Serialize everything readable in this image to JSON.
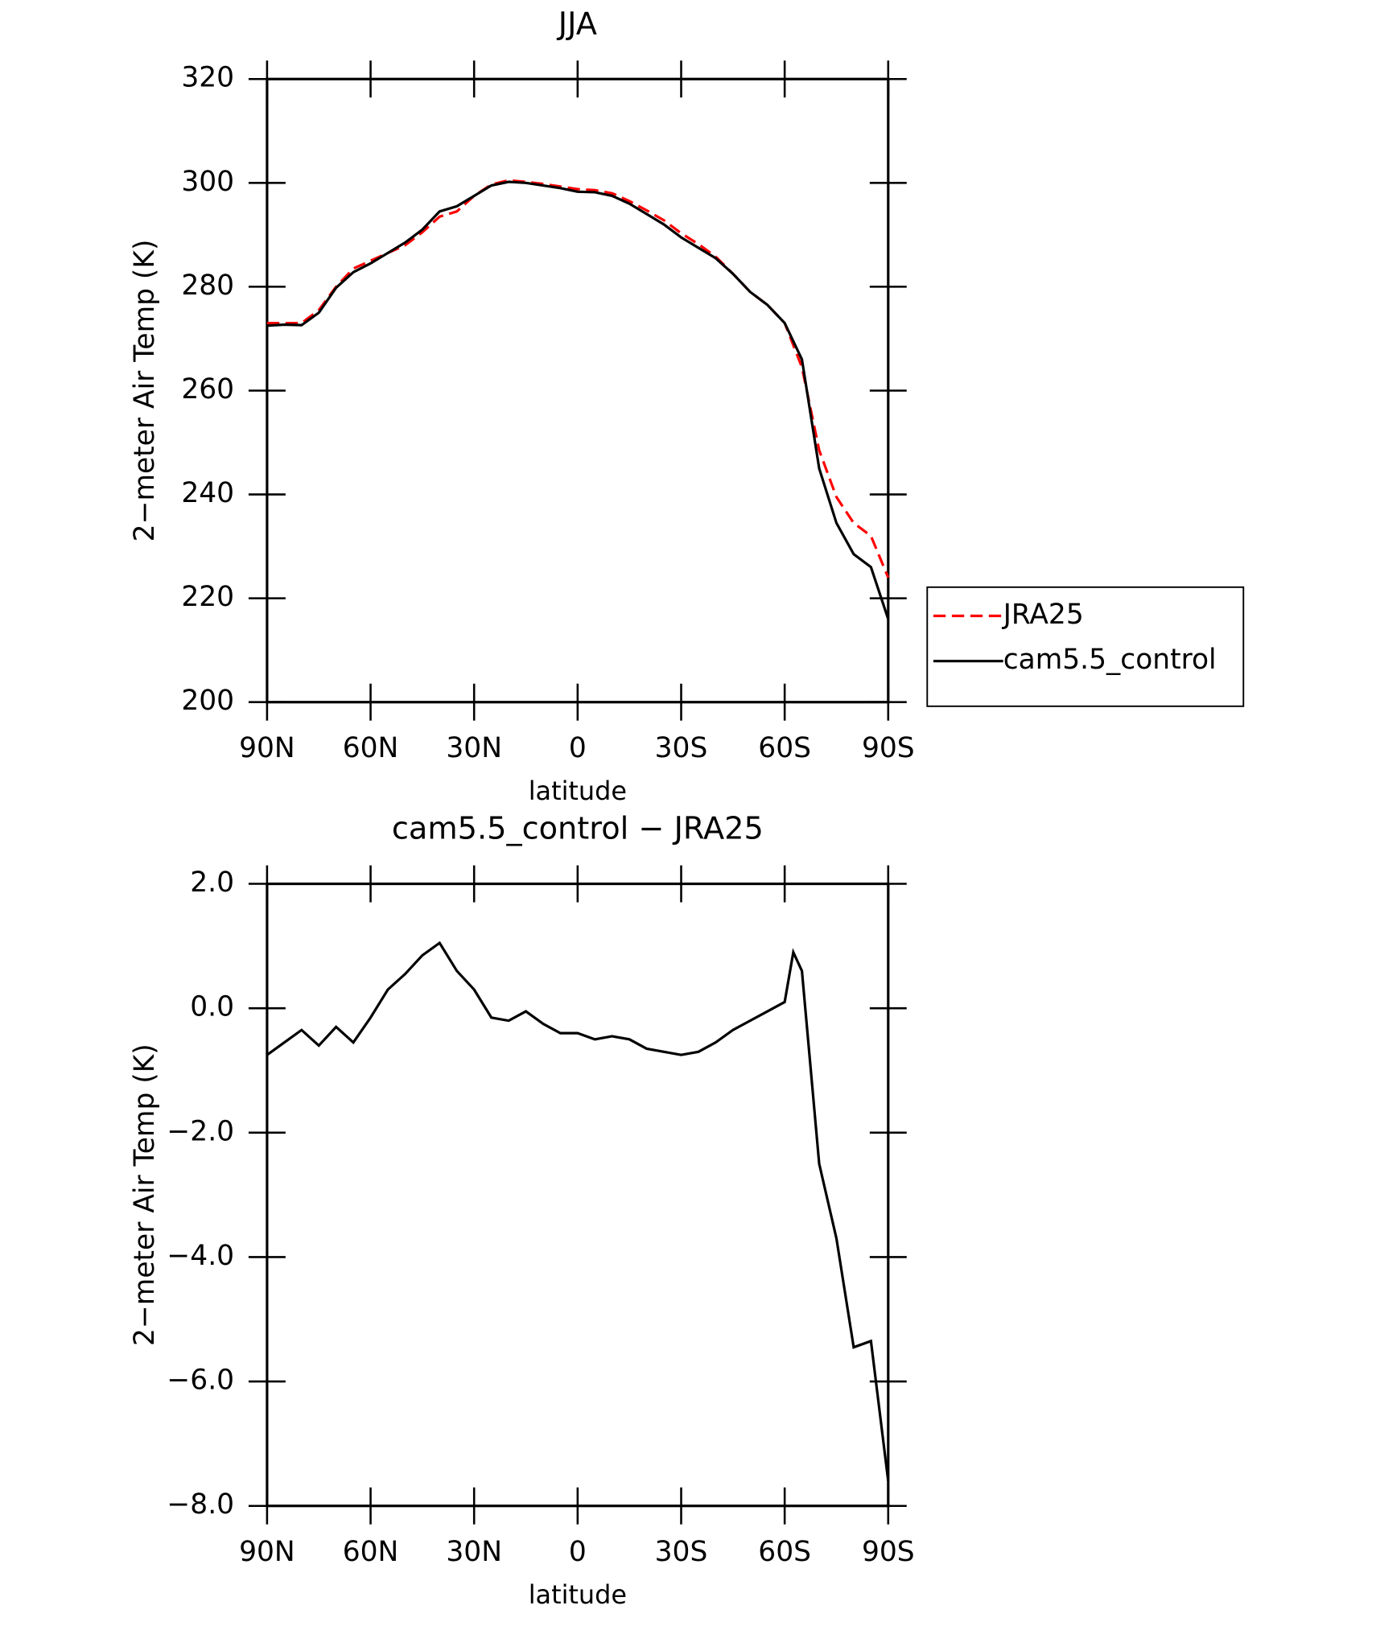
{
  "chart_data": [
    {
      "type": "line",
      "title": "JJA",
      "xlabel": "latitude",
      "ylabel": "2−meter Air Temp (K)",
      "x": [
        90,
        85,
        80,
        75,
        70,
        65,
        60,
        55,
        50,
        45,
        40,
        35,
        30,
        25,
        20,
        15,
        10,
        5,
        0,
        -5,
        -10,
        -15,
        -20,
        -25,
        -30,
        -35,
        -40,
        -45,
        -50,
        -55,
        -60,
        -65,
        -70,
        -75,
        -80,
        -85,
        -90
      ],
      "xlim": [
        90,
        -90
      ],
      "xticks": [
        {
          "value": 90,
          "label": "90N"
        },
        {
          "value": 60,
          "label": "60N"
        },
        {
          "value": 30,
          "label": "30N"
        },
        0,
        {
          "value": -30,
          "label": "30S"
        },
        {
          "value": -60,
          "label": "60S"
        },
        {
          "value": -90,
          "label": "90S"
        }
      ],
      "ylim": [
        200,
        320
      ],
      "yticks": [
        200,
        220,
        240,
        260,
        280,
        300,
        320
      ],
      "legend": "right",
      "series": [
        {
          "name": "JRA25",
          "color": "#ff0000",
          "style": "dashed",
          "values": [
            273,
            273,
            273,
            275.5,
            280,
            283.5,
            285,
            286.5,
            288,
            290.5,
            293.5,
            294.5,
            297.5,
            299.7,
            300.5,
            300.2,
            299.8,
            299.3,
            298.8,
            298.6,
            298,
            296.5,
            294.7,
            292.8,
            290.3,
            288.2,
            285.8,
            282.5,
            279,
            276.5,
            273,
            264.5,
            248.5,
            239.5,
            234.5,
            232,
            224
          ]
        },
        {
          "name": "cam5.5_control",
          "color": "#000000",
          "style": "solid",
          "values": [
            272.5,
            272.7,
            272.6,
            275,
            279.8,
            282.8,
            284.5,
            286.5,
            288.5,
            291,
            294.5,
            295.5,
            297.5,
            299.5,
            300.2,
            300,
            299.5,
            299,
            298.3,
            298.2,
            297.5,
            296,
            294,
            292,
            289.5,
            287.5,
            285.5,
            282.5,
            279,
            276.5,
            273,
            266,
            245,
            234.5,
            228.5,
            226,
            216
          ]
        }
      ]
    },
    {
      "type": "line",
      "title": "cam5.5_control − JRA25",
      "xlabel": "latitude",
      "ylabel": "2−meter Air Temp (K)",
      "x": [
        90,
        85,
        80,
        75,
        70,
        65,
        60,
        55,
        50,
        45,
        40,
        35,
        30,
        25,
        20,
        15,
        10,
        5,
        0,
        -5,
        -10,
        -15,
        -20,
        -25,
        -30,
        -35,
        -40,
        -45,
        -50,
        -55,
        -60,
        -62.5,
        -65,
        -70,
        -75,
        -80,
        -85,
        -90
      ],
      "xlim": [
        90,
        -90
      ],
      "xticks": [
        {
          "value": 90,
          "label": "90N"
        },
        {
          "value": 60,
          "label": "60N"
        },
        {
          "value": 30,
          "label": "30N"
        },
        0,
        {
          "value": -30,
          "label": "30S"
        },
        {
          "value": -60,
          "label": "60S"
        },
        {
          "value": -90,
          "label": "90S"
        }
      ],
      "ylim": [
        -8,
        2
      ],
      "yticks": [
        {
          "value": -8,
          "label": "−8.0"
        },
        {
          "value": -6,
          "label": "−6.0"
        },
        {
          "value": -4,
          "label": "−4.0"
        },
        {
          "value": -2,
          "label": "−2.0"
        },
        {
          "value": 0,
          "label": "0.0"
        },
        {
          "value": 2,
          "label": "2.0"
        }
      ],
      "series": [
        {
          "color": "#000000",
          "style": "solid",
          "values": [
            -0.75,
            -0.55,
            -0.35,
            -0.6,
            -0.3,
            -0.55,
            -0.15,
            0.3,
            0.55,
            0.85,
            1.05,
            0.6,
            0.3,
            -0.15,
            -0.2,
            -0.05,
            -0.25,
            -0.4,
            -0.4,
            -0.5,
            -0.45,
            -0.5,
            -0.65,
            -0.7,
            -0.75,
            -0.7,
            -0.55,
            -0.35,
            -0.2,
            -0.05,
            0.1,
            0.9,
            0.6,
            -2.5,
            -3.7,
            -5.45,
            -5.35,
            -7.6
          ]
        }
      ]
    }
  ]
}
